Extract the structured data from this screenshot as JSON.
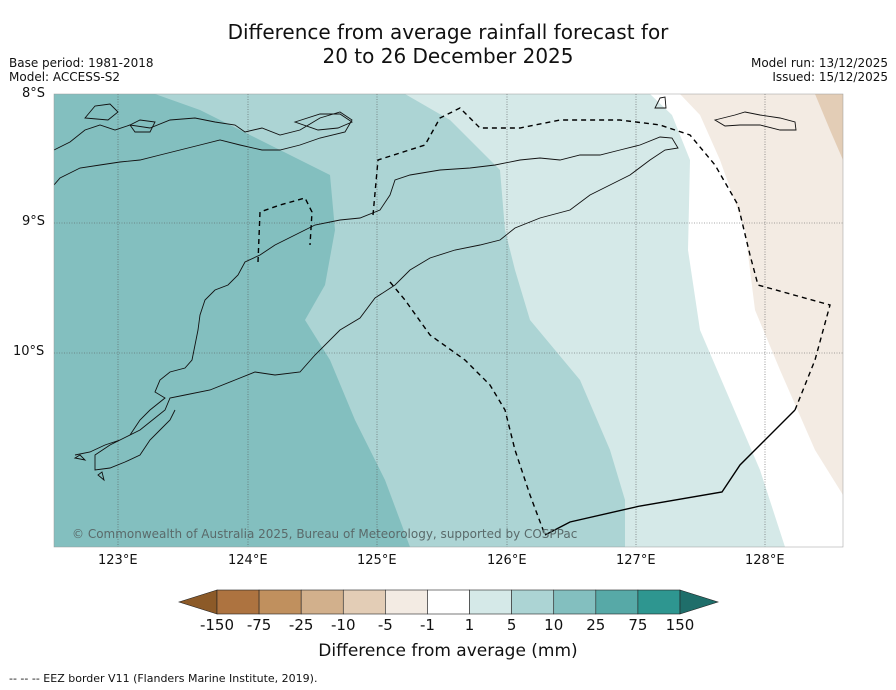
{
  "title_line1": "Difference from average rainfall forecast for",
  "title_line2": "20 to 26 December 2025",
  "meta_left": {
    "base_period": "Base period: 1981-2018",
    "model": "Model: ACCESS-S2"
  },
  "meta_right": {
    "model_run": "Model run: 13/12/2025",
    "issued": "Issued: 15/12/2025"
  },
  "lat_labels": [
    "8°S",
    "9°S",
    "10°S"
  ],
  "lon_labels": [
    "123°E",
    "124°E",
    "125°E",
    "126°E",
    "127°E",
    "128°E"
  ],
  "copyright": "© Commonwealth of Australia 2025, Bureau of Meteorology, supported by COSPPac",
  "colorbar": {
    "labels": [
      "-150",
      "-75",
      "-25",
      "-10",
      "-5",
      "-1",
      "1",
      "5",
      "10",
      "25",
      "75",
      "150"
    ],
    "colors": [
      "#8c5a28",
      "#ad7340",
      "#c0905e",
      "#d2b08c",
      "#e3cdb6",
      "#f3ebe3",
      "#ffffff",
      "#d5e9e8",
      "#acd4d4",
      "#83bfbf",
      "#57a9a7",
      "#2e9690",
      "#1f6e6a"
    ],
    "title": "Difference from average (mm)"
  },
  "footer": "--  --  -- EEZ border V11 (Flanders Marine Institute, 2019)."
}
